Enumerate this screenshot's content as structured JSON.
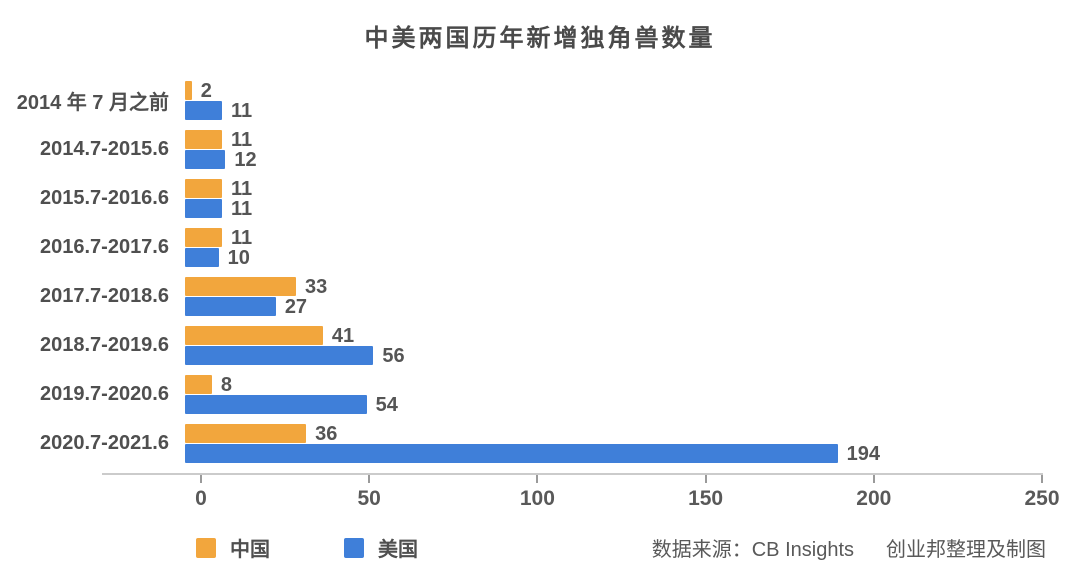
{
  "title": "中美两国历年新增独角兽数量",
  "chart_data": {
    "type": "bar",
    "orientation": "horizontal",
    "title": "中美两国历年新增独角兽数量",
    "categories": [
      "2014 年 7 月之前",
      "2014.7-2015.6",
      "2015.7-2016.6",
      "2016.7-2017.6",
      "2017.7-2018.6",
      "2018.7-2019.6",
      "2019.7-2020.6",
      "2020.7-2021.6"
    ],
    "series": [
      {
        "name": "中国",
        "color": "#F2A63D",
        "values": [
          2,
          11,
          11,
          11,
          33,
          41,
          8,
          36
        ]
      },
      {
        "name": "美国",
        "color": "#3F7FD9",
        "values": [
          11,
          12,
          11,
          10,
          27,
          56,
          54,
          194
        ]
      }
    ],
    "xlabel": "",
    "ylabel": "",
    "xlim": [
      0,
      250
    ],
    "x_ticks": [
      0,
      50,
      100,
      150,
      200,
      250
    ],
    "grid": false,
    "value_labels": true,
    "legend_position": "bottom-left"
  },
  "footer": {
    "source_label": "数据来源：CB Insights",
    "credit_label": "创业邦整理及制图"
  }
}
